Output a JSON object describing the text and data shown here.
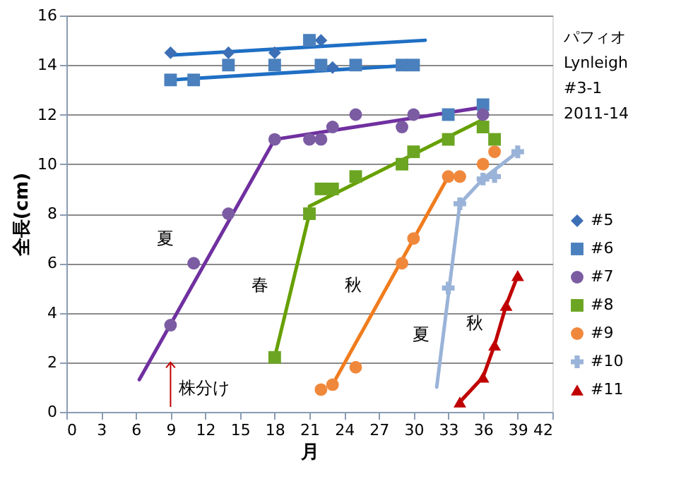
{
  "chart_data": {
    "type": "scatter",
    "xlabel": "月",
    "ylabel": "全長(cm)",
    "xlim": [
      0,
      42
    ],
    "ylim": [
      0,
      16
    ],
    "xticks": [
      0,
      3,
      6,
      9,
      12,
      15,
      18,
      21,
      24,
      27,
      30,
      33,
      36,
      39,
      42
    ],
    "yticks": [
      0,
      2,
      4,
      6,
      8,
      10,
      12,
      14,
      16
    ],
    "grid": "y",
    "legend": "right",
    "series": [
      {
        "name": "#5",
        "marker": "diamond",
        "color": "#3c6fb6",
        "x": [
          9,
          14,
          18,
          22,
          23
        ],
        "values": [
          14.5,
          14.5,
          14.5,
          15.0,
          13.9
        ]
      },
      {
        "name": "#6",
        "marker": "square",
        "color": "#4a80bd",
        "x": [
          9,
          11,
          14,
          18,
          21,
          22,
          25,
          29,
          30,
          33,
          36
        ],
        "values": [
          13.4,
          13.4,
          14.0,
          14.0,
          15.0,
          14.0,
          14.0,
          14.0,
          14.0,
          12.0,
          12.4
        ]
      },
      {
        "name": "#7",
        "marker": "circle",
        "color": "#7b5ca3",
        "x": [
          9,
          11,
          14,
          18,
          21,
          22,
          23,
          25,
          29,
          30,
          36
        ],
        "values": [
          3.5,
          6.0,
          8.0,
          11.0,
          11.0,
          11.0,
          11.5,
          12.0,
          11.5,
          12.0,
          12.0
        ]
      },
      {
        "name": "#8",
        "marker": "square",
        "color": "#6ba522",
        "x": [
          18,
          21,
          22,
          23,
          25,
          29,
          30,
          33,
          36,
          37
        ],
        "values": [
          2.2,
          8.0,
          9.0,
          9.0,
          9.5,
          10.0,
          10.5,
          11.0,
          11.5,
          11.0
        ]
      },
      {
        "name": "#9",
        "marker": "circle",
        "color": "#f0883c",
        "x": [
          22,
          23,
          25,
          29,
          30,
          33,
          34,
          36,
          37
        ],
        "values": [
          0.9,
          1.1,
          1.8,
          6.0,
          7.0,
          9.5,
          9.5,
          10.0,
          10.5
        ]
      },
      {
        "name": "#10",
        "marker": "cross",
        "color": "#9ab3d8",
        "x": [
          33,
          34,
          36,
          37,
          39
        ],
        "values": [
          5.0,
          8.4,
          9.4,
          9.5,
          10.5
        ]
      },
      {
        "name": "#11",
        "type": "line",
        "marker": "triangle",
        "color": "#c00000",
        "x": [
          34,
          36,
          37,
          38,
          39
        ],
        "values": [
          0.4,
          1.4,
          2.7,
          4.3,
          5.5
        ]
      },
      {
        "type": "line",
        "marker": "none",
        "color": "#1f6fc4",
        "x": [
          9,
          31
        ],
        "values": [
          14.4,
          15.0
        ]
      },
      {
        "type": "line",
        "marker": "none",
        "color": "#1f6fc4",
        "x": [
          9,
          30
        ],
        "values": [
          13.4,
          14.0
        ]
      },
      {
        "type": "line",
        "marker": "none",
        "color": "#7030a0",
        "x": [
          6.3,
          18,
          36
        ],
        "values": [
          1.3,
          11.0,
          12.3
        ]
      },
      {
        "type": "line",
        "marker": "none",
        "color": "#66a000",
        "x": [
          18,
          21
        ],
        "values": [
          2.2,
          8.0
        ]
      },
      {
        "type": "line",
        "marker": "none",
        "color": "#66a000",
        "x": [
          21,
          36
        ],
        "values": [
          8.3,
          11.8
        ]
      },
      {
        "type": "line",
        "marker": "none",
        "color": "#f07c1e",
        "x": [
          23,
          33
        ],
        "values": [
          1.1,
          9.5
        ]
      },
      {
        "type": "line",
        "marker": "none",
        "color": "#9ab3d8",
        "x": [
          32,
          34,
          36,
          39
        ],
        "values": [
          1.0,
          8.4,
          9.4,
          10.5
        ]
      }
    ],
    "annotations": [
      "パフィオ",
      "Lynleigh",
      "#3-1",
      "2011-14",
      "夏",
      "春",
      "秋",
      "夏",
      "秋",
      {
        "text": "株分け",
        "x": 9,
        "y": 2.0
      }
    ]
  }
}
